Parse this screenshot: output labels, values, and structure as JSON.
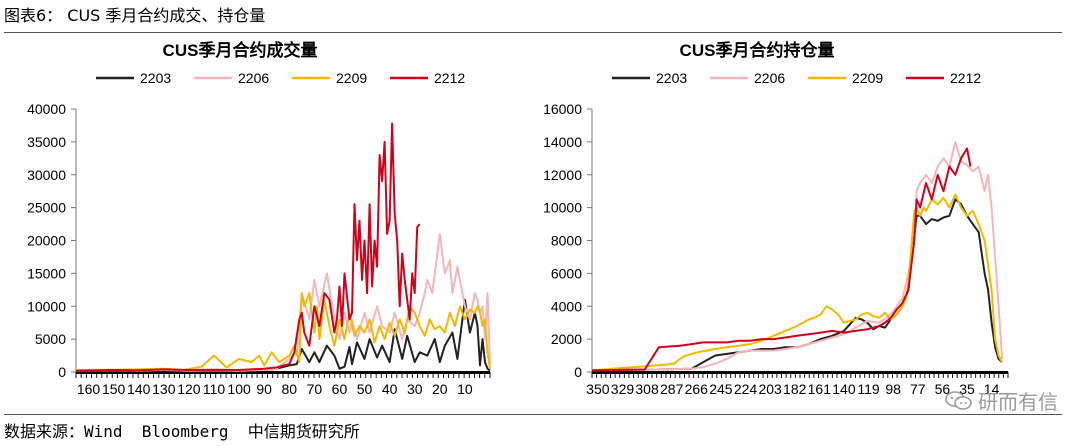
{
  "figure": {
    "title": "图表6： CUS 季月合约成交、持仓量",
    "source": "数据来源：Wind  Bloomberg  中信期货研究所",
    "watermark": "研而有信",
    "watermark_icon": "wechat-icon"
  },
  "chart_data": [
    {
      "type": "line",
      "title": "CUS季月合约成交量",
      "x_ticks": [
        "160",
        "150",
        "140",
        "130",
        "120",
        "110",
        "100",
        "90",
        "80",
        "70",
        "60",
        "50",
        "40",
        "30",
        "20",
        "10"
      ],
      "x_range": [
        165,
        0
      ],
      "ylim": [
        0,
        40000
      ],
      "y_ticks": [
        "0",
        "5000",
        "10000",
        "15000",
        "20000",
        "25000",
        "30000",
        "35000",
        "40000"
      ],
      "legend_position": "top",
      "series": [
        {
          "name": "2203",
          "color": "#222222",
          "x": [
            165,
            150,
            140,
            130,
            120,
            110,
            100,
            90,
            85,
            80,
            77,
            75,
            72,
            70,
            68,
            65,
            62,
            60,
            58,
            56,
            55,
            53,
            50,
            48,
            45,
            43,
            40,
            38,
            35,
            33,
            30,
            28,
            25,
            22,
            20,
            18,
            15,
            13,
            10,
            8,
            6,
            5,
            4,
            3,
            2,
            1,
            0
          ],
          "y": [
            200,
            250,
            200,
            300,
            200,
            250,
            200,
            300,
            500,
            1000,
            1200,
            3500,
            1500,
            3000,
            1500,
            4000,
            2500,
            500,
            800,
            3800,
            1200,
            4500,
            2000,
            5000,
            2200,
            4000,
            1500,
            6500,
            2000,
            5500,
            1500,
            3000,
            2500,
            5000,
            1500,
            4000,
            6000,
            2000,
            11000,
            6000,
            9000,
            7000,
            1000,
            5000,
            1500,
            500,
            200
          ]
        },
        {
          "name": "2206",
          "color": "#f4b6b9",
          "x": [
            165,
            150,
            140,
            130,
            120,
            110,
            100,
            90,
            85,
            80,
            77,
            75,
            72,
            70,
            68,
            65,
            62,
            60,
            58,
            56,
            55,
            53,
            50,
            48,
            45,
            43,
            40,
            38,
            35,
            33,
            30,
            28,
            26,
            25,
            23,
            20,
            18,
            16,
            15,
            13,
            12,
            10,
            8,
            6,
            5,
            4,
            3,
            2,
            1,
            0
          ],
          "y": [
            200,
            250,
            200,
            300,
            200,
            250,
            200,
            300,
            500,
            2000,
            3000,
            12000,
            8000,
            14000,
            10000,
            15000,
            8000,
            5000,
            9000,
            6000,
            8000,
            5000,
            9000,
            6000,
            10000,
            7000,
            6000,
            9000,
            5000,
            8000,
            7000,
            9000,
            12000,
            14000,
            12000,
            21000,
            15000,
            17000,
            12000,
            16000,
            14000,
            10000,
            8000,
            12000,
            11000,
            9000,
            10000,
            5000,
            12000,
            1000
          ]
        },
        {
          "name": "2209",
          "color": "#f5b800",
          "x": [
            165,
            150,
            140,
            130,
            122,
            118,
            115,
            110,
            105,
            100,
            95,
            92,
            90,
            87,
            84,
            80,
            78,
            76,
            75,
            74,
            72,
            70,
            69,
            68,
            66,
            64,
            62,
            60,
            58,
            56,
            54,
            52,
            50,
            48,
            46,
            44,
            42,
            40,
            38,
            36,
            34,
            32,
            30,
            28,
            26,
            24,
            22,
            20,
            18,
            16,
            14,
            12,
            10,
            8,
            6,
            5,
            4,
            3,
            2,
            1,
            0
          ],
          "y": [
            300,
            350,
            400,
            500,
            300,
            600,
            800,
            2500,
            700,
            2000,
            1500,
            2500,
            1000,
            3000,
            1500,
            2500,
            4000,
            1500,
            12000,
            10000,
            12000,
            6000,
            10000,
            5000,
            11000,
            7000,
            4000,
            8000,
            5000,
            9000,
            5500,
            7000,
            6000,
            8000,
            4500,
            7000,
            5000,
            7500,
            5500,
            8000,
            6000,
            10000,
            9000,
            7000,
            5500,
            8000,
            6500,
            7000,
            6000,
            9000,
            7000,
            10000,
            8000,
            9500,
            9000,
            10000,
            9000,
            7000,
            8000,
            3000,
            500
          ]
        },
        {
          "name": "2212",
          "color": "#d0021b",
          "x": [
            165,
            150,
            140,
            130,
            120,
            110,
            100,
            90,
            85,
            80,
            78,
            76,
            75,
            74,
            72,
            70,
            68,
            66,
            64,
            62,
            61,
            60,
            59,
            58,
            56,
            55,
            54,
            53,
            52,
            51,
            50,
            49,
            48,
            47,
            46,
            45,
            44,
            43,
            42,
            41,
            40,
            39,
            38,
            37,
            36,
            35,
            34,
            33,
            32,
            31,
            30,
            29,
            28
          ],
          "y": [
            200,
            300,
            250,
            400,
            300,
            350,
            300,
            500,
            700,
            1200,
            3000,
            8000,
            9000,
            6000,
            4000,
            10000,
            7000,
            12000,
            11000,
            6000,
            8000,
            13000,
            7000,
            15000,
            8000,
            9000,
            25500,
            17000,
            23000,
            14000,
            20000,
            12000,
            25500,
            13000,
            20000,
            16000,
            33000,
            29000,
            35000,
            21000,
            23000,
            37800,
            24000,
            20000,
            10000,
            18000,
            14000,
            11000,
            8000,
            15000,
            12000,
            22000,
            22500
          ]
        }
      ]
    },
    {
      "type": "line",
      "title": "CUS季月合约持仓量",
      "x_ticks": [
        "350",
        "329",
        "308",
        "287",
        "266",
        "245",
        "224",
        "203",
        "182",
        "161",
        "140",
        "119",
        "98",
        "77",
        "56",
        "35",
        "14"
      ],
      "x_range": [
        355,
        0
      ],
      "ylim": [
        0,
        16000
      ],
      "y_ticks": [
        "0",
        "2000",
        "4000",
        "6000",
        "8000",
        "10000",
        "12000",
        "14000",
        "16000"
      ],
      "legend_position": "top",
      "series": [
        {
          "name": "2203",
          "color": "#222222",
          "x": [
            355,
            300,
            270,
            260,
            250,
            240,
            230,
            220,
            210,
            200,
            190,
            180,
            170,
            160,
            150,
            140,
            130,
            125,
            120,
            115,
            110,
            105,
            100,
            95,
            90,
            85,
            82,
            78,
            75,
            70,
            65,
            60,
            55,
            50,
            45,
            40,
            35,
            30,
            25,
            20,
            17,
            14,
            11,
            8,
            5
          ],
          "y": [
            100,
            150,
            200,
            600,
            1000,
            1100,
            1200,
            1300,
            1400,
            1400,
            1500,
            1500,
            1700,
            2000,
            2200,
            2500,
            3300,
            3200,
            3000,
            2600,
            2800,
            2700,
            3200,
            3500,
            4000,
            5000,
            7000,
            9500,
            9500,
            9000,
            9300,
            9200,
            9400,
            9500,
            10500,
            10200,
            9500,
            9000,
            8500,
            6000,
            5000,
            3000,
            1500,
            800,
            600
          ]
        },
        {
          "name": "2206",
          "color": "#f4b6b9",
          "x": [
            355,
            300,
            270,
            260,
            250,
            240,
            230,
            220,
            210,
            200,
            190,
            180,
            170,
            160,
            150,
            140,
            130,
            120,
            110,
            100,
            95,
            90,
            85,
            80,
            78,
            75,
            70,
            65,
            60,
            55,
            50,
            45,
            40,
            35,
            30,
            25,
            20,
            17,
            14,
            11,
            8,
            5
          ],
          "y": [
            100,
            150,
            200,
            300,
            500,
            800,
            1200,
            1300,
            1300,
            1300,
            1400,
            1500,
            1700,
            1900,
            2100,
            2300,
            2700,
            3100,
            3000,
            3500,
            4000,
            4500,
            6000,
            8000,
            11000,
            11500,
            12000,
            11500,
            12500,
            13000,
            12500,
            14000,
            12800,
            12600,
            12200,
            12500,
            11000,
            12000,
            10000,
            7000,
            4000,
            800
          ]
        },
        {
          "name": "2209",
          "color": "#f5b800",
          "x": [
            355,
            320,
            300,
            285,
            280,
            275,
            265,
            250,
            240,
            230,
            220,
            210,
            200,
            190,
            180,
            175,
            170,
            165,
            160,
            155,
            150,
            145,
            140,
            135,
            130,
            125,
            120,
            115,
            110,
            105,
            100,
            95,
            90,
            87,
            85,
            82,
            80,
            78,
            75,
            72,
            70,
            65,
            60,
            55,
            50,
            45,
            40,
            35,
            30,
            25,
            20,
            17,
            14,
            11,
            8,
            5
          ],
          "y": [
            100,
            300,
            400,
            500,
            800,
            1000,
            1200,
            1400,
            1500,
            1600,
            1700,
            1900,
            2200,
            2500,
            2800,
            3000,
            3200,
            3300,
            3500,
            4000,
            3800,
            3500,
            3000,
            3100,
            3200,
            3500,
            3600,
            3400,
            3300,
            3600,
            3200,
            3500,
            4000,
            4500,
            5500,
            8000,
            9800,
            10000,
            9500,
            10000,
            9800,
            10500,
            10200,
            10600,
            10000,
            10800,
            10000,
            9500,
            9800,
            9000,
            8000,
            6500,
            5000,
            2000,
            1000,
            600
          ]
        },
        {
          "name": "2212",
          "color": "#d0021b",
          "x": [
            355,
            310,
            298,
            280,
            270,
            260,
            250,
            240,
            230,
            220,
            210,
            200,
            190,
            180,
            170,
            160,
            150,
            140,
            130,
            120,
            110,
            105,
            100,
            95,
            90,
            85,
            80,
            78,
            75,
            70,
            65,
            60,
            55,
            50,
            45,
            40,
            35,
            32
          ],
          "y": [
            100,
            150,
            1500,
            1600,
            1700,
            1800,
            1800,
            1800,
            1900,
            1900,
            2000,
            2000,
            2100,
            2200,
            2300,
            2400,
            2500,
            2400,
            2500,
            2600,
            2800,
            3000,
            3300,
            3800,
            4200,
            5000,
            8000,
            10500,
            10000,
            11500,
            10500,
            12000,
            11000,
            12500,
            12000,
            13000,
            13600,
            12500
          ]
        }
      ]
    }
  ]
}
